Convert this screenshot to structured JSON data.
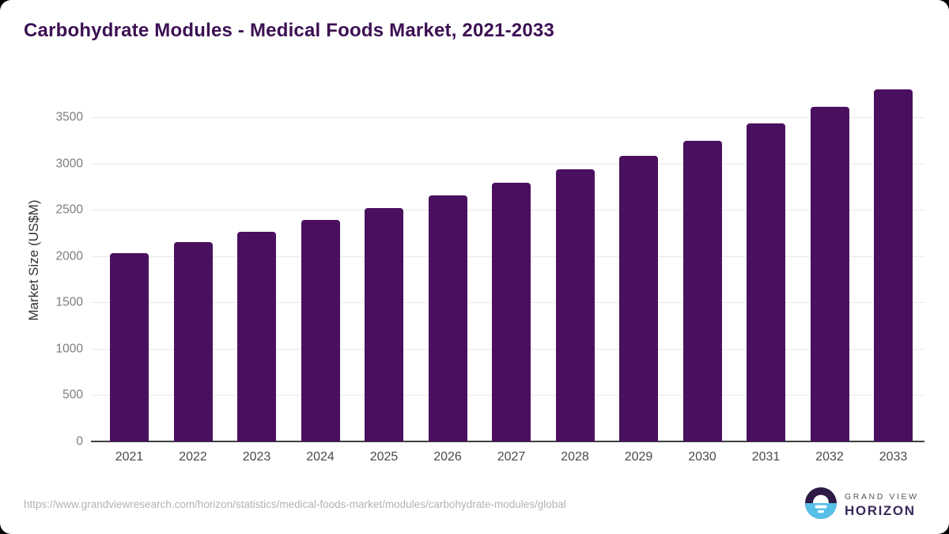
{
  "header": {
    "title": "Carbohydrate Modules - Medical Foods Market, 2021-2033",
    "title_color": "#3c1053"
  },
  "footer": {
    "source_url": "https://www.grandviewresearch.com/horizon/statistics/medical-foods-market/modules/carbohydrate-modules/global",
    "logo": {
      "line1": "GRAND VIEW",
      "line2": "HORIZON",
      "mark_dark_color": "#2d1b45",
      "mark_blue_color": "#56c0e8"
    }
  },
  "chart_data": {
    "type": "bar",
    "title": "Carbohydrate Modules - Medical Foods Market, 2021-2033",
    "xlabel": "",
    "ylabel": "Market Size (US$M)",
    "categories": [
      "2021",
      "2022",
      "2023",
      "2024",
      "2025",
      "2026",
      "2027",
      "2028",
      "2029",
      "2030",
      "2031",
      "2032",
      "2033"
    ],
    "values": [
      2030,
      2155,
      2265,
      2390,
      2520,
      2655,
      2790,
      2935,
      3085,
      3250,
      3430,
      3610,
      3800
    ],
    "yticks": [
      0,
      500,
      1000,
      1500,
      2000,
      2500,
      3000,
      3500
    ],
    "ylim": [
      0,
      3912
    ],
    "grid": true,
    "legend": false,
    "bar_color": "#4a105f",
    "grid_color": "#e9e9e9",
    "axis_color": "#3f3f3f",
    "ytick_color": "#7d7d7d",
    "xtick_color": "#4a4a4a"
  }
}
